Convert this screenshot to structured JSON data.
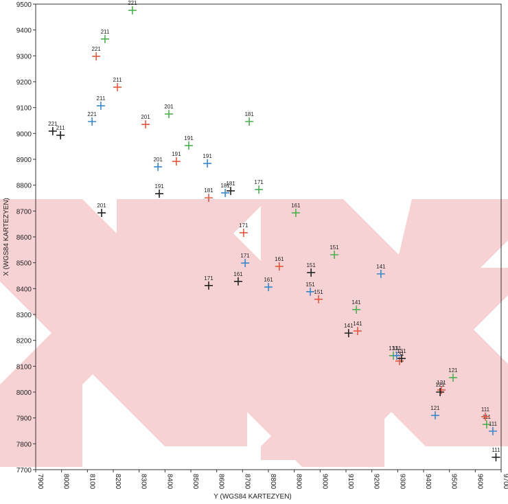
{
  "chart_data": {
    "type": "scatter",
    "x_label": "Y (WGS84 KARTEZYEN)",
    "y_label": "X (WGS84 KARTEZYEN)",
    "xlim": [
      7900,
      9700
    ],
    "ylim": [
      7700,
      9500
    ],
    "xticks": [
      7900,
      8000,
      8100,
      8200,
      8300,
      8400,
      8500,
      8600,
      8700,
      8800,
      8900,
      9000,
      9100,
      9200,
      9300,
      9400,
      9500,
      9600,
      9700
    ],
    "yticks": [
      7700,
      7800,
      7900,
      8000,
      8100,
      8200,
      8300,
      8400,
      8500,
      8600,
      8700,
      8800,
      8900,
      9000,
      9100,
      9200,
      9300,
      9400,
      9500
    ],
    "series": [
      {
        "color": "#4caf50",
        "x": [
          8274,
          8168,
          8415,
          8492,
          8726,
          8763,
          8906,
          9055,
          9140,
          9283,
          9514,
          9644
        ],
        "values": [
          9476,
          9365,
          9075,
          8953,
          9046,
          8783,
          8693,
          8531,
          8319,
          8141,
          8056,
          7875
        ],
        "labels": [
          "221",
          "211",
          "201",
          "191",
          "181",
          "171",
          "161",
          "151",
          "141",
          "131",
          "121",
          "111"
        ]
      },
      {
        "color": "#e4573f",
        "x": [
          8134,
          8216,
          8325,
          8444,
          8569,
          8704,
          8842,
          8994,
          9145,
          9307,
          9469,
          9639
        ],
        "values": [
          9298,
          9179,
          9035,
          8892,
          8751,
          8616,
          8486,
          8359,
          8236,
          8120,
          8008,
          7905
        ],
        "labels": [
          "221",
          "211",
          "201",
          "191",
          "181",
          "171",
          "161",
          "151",
          "141",
          "131",
          "121",
          "111"
        ]
      },
      {
        "color": "#3a86c8",
        "x": [
          8118,
          8152,
          8373,
          8564,
          8633,
          8710,
          8800,
          8962,
          9235,
          9296,
          9445,
          9668
        ],
        "values": [
          9046,
          9107,
          8871,
          8884,
          8770,
          8499,
          8406,
          8388,
          8457,
          8141,
          7910,
          7849
        ],
        "labels": [
          "221",
          "211",
          "201",
          "191",
          "181",
          "171",
          "161",
          "151",
          "141",
          "131",
          "121",
          "111"
        ]
      },
      {
        "color": "#222222",
        "x": [
          7966,
          7996,
          8155,
          8378,
          8654,
          8569,
          8683,
          8965,
          9110,
          9315,
          9464,
          9680
        ],
        "values": [
          9009,
          8993,
          8693,
          8767,
          8778,
          8412,
          8428,
          8462,
          8228,
          8130,
          8000,
          7748
        ],
        "labels": [
          "221",
          "211",
          "201",
          "191",
          "181",
          "171",
          "161",
          "151",
          "141",
          "131",
          "121",
          "111"
        ]
      }
    ]
  }
}
